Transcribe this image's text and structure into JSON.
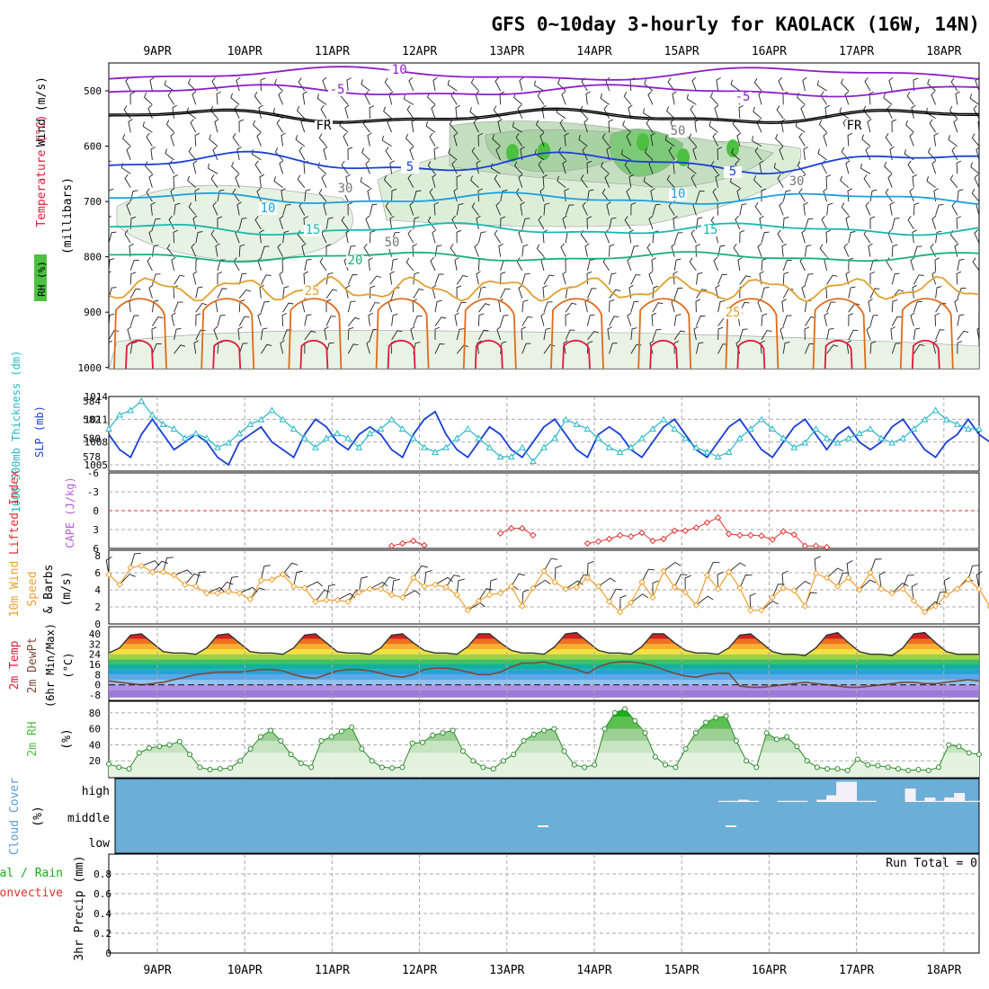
{
  "title": "GFS 0~10day 3-hourly for KAOLACK (16W, 14N)",
  "dates": [
    "9APR",
    "10APR",
    "11APR",
    "12APR",
    "13APR",
    "14APR",
    "15APR",
    "16APR",
    "17APR",
    "18APR"
  ],
  "colors": {
    "temp_purple": "#8a1fc8",
    "temp_blue": "#1a3fd8",
    "temp_lightblue": "#1aa0e0",
    "temp_teal": "#1ab8b0",
    "temp_green": "#18b07a",
    "temp_orange": "#e0a030",
    "temp_darkorange": "#e06a18",
    "temp_red": "#e01838",
    "rh_green": "#4cc040",
    "slp_blue": "#1a3fd8",
    "thickness_cyan": "#28b8c8",
    "li_red": "#e03030",
    "wind_orange": "#f0a030",
    "cloud_blue": "#6baed6"
  },
  "panels": {
    "upper_air": {
      "ylabels": {
        "rh": "RH (%)",
        "temp": "Temperature (°C)",
        "wind": "Wind (m/s)",
        "pressure": "(millibars)"
      },
      "yticks": [
        "500",
        "600",
        "700",
        "800",
        "900",
        "1000"
      ],
      "contour_labels": [
        "-10",
        "-5",
        "-5",
        "FR",
        "FR",
        "5",
        "5",
        "10",
        "10",
        "15",
        "15",
        "20",
        "25",
        "25",
        "30",
        "30",
        "50",
        "50"
      ],
      "rh_legend": "RH (%)"
    },
    "slp": {
      "ylabel_left": "1000-500mb Thickness (dm)",
      "ylabel_right": "SLP (mb)",
      "yticks_left": [
        "584",
        "582",
        "580",
        "578"
      ],
      "yticks_right": [
        "1014",
        "1011",
        "1008",
        "1005"
      ]
    },
    "li": {
      "ylabel_left": "Lifted Index",
      "ylabel_right": "CAPE (J/kg)",
      "yticks": [
        "-6",
        "-3",
        "0",
        "3",
        "6"
      ]
    },
    "wind10": {
      "ylabel": "10m Wind Speed & Barbs (m/s)",
      "ylabel_lines": [
        "10m Wind",
        "Speed",
        "& Barbs",
        "(m/s)"
      ],
      "yticks": [
        "8",
        "6",
        "4",
        "2",
        "0"
      ]
    },
    "temp2m": {
      "ylabel_lines": [
        "2m Temp",
        "2m DewPt",
        "(6hr Min/Max)",
        "(°C)"
      ],
      "yticks": [
        "40",
        "32",
        "24",
        "16",
        "8",
        "0",
        "-8"
      ]
    },
    "rh2m": {
      "ylabel_lines": [
        "2m RH",
        "(%)"
      ],
      "yticks": [
        "80",
        "60",
        "40",
        "20"
      ]
    },
    "cloud": {
      "ylabel_lines": [
        "Cloud Cover",
        "(%)"
      ],
      "levels": [
        "high",
        "middle",
        "low"
      ]
    },
    "precip": {
      "ylabel_lines": [
        "Total / Rain",
        "Convective",
        "3hr Precip (mm)"
      ],
      "yticks": [
        "0.8",
        "0.6",
        "0.4",
        "0.2",
        "0"
      ],
      "run_total": "Run Total = 0"
    }
  },
  "chart_data": [
    {
      "type": "line",
      "name": "slp",
      "title": "",
      "ylabel": "SLP (mb)",
      "ylim": [
        1004,
        1014
      ],
      "values": [
        1009,
        1007,
        1006,
        1009,
        1011,
        1009,
        1007,
        1008,
        1009,
        1008,
        1006,
        1005,
        1008,
        1009,
        1010,
        1008,
        1007,
        1006,
        1009,
        1011,
        1010,
        1008,
        1007,
        1009,
        1010,
        1009,
        1007,
        1006,
        1009,
        1011,
        1012,
        1009,
        1007,
        1006,
        1008,
        1010,
        1009,
        1007,
        1006,
        1008,
        1010,
        1011,
        1009,
        1007,
        1006,
        1009,
        1010,
        1009,
        1007,
        1006,
        1008,
        1010,
        1011,
        1009,
        1007,
        1006,
        1008,
        1010,
        1011,
        1009,
        1007,
        1006,
        1008,
        1010,
        1011,
        1009,
        1007,
        1009,
        1010,
        1008,
        1007,
        1008,
        1010,
        1011,
        1009,
        1007,
        1006,
        1008,
        1009,
        1011,
        1009,
        1008
      ]
    },
    {
      "type": "line",
      "name": "thickness",
      "title": "",
      "ylabel": "1000-500mb Thickness (dm)",
      "ylim": [
        577,
        585
      ],
      "values": [
        581,
        582.5,
        583,
        584,
        582.5,
        581.5,
        581,
        580,
        580.5,
        580,
        579,
        579.5,
        580.5,
        581.5,
        582,
        583,
        582,
        581,
        580,
        579,
        580,
        580.5,
        580,
        579,
        580.5,
        581,
        582,
        581,
        580,
        579,
        578.5,
        579,
        580,
        581,
        580,
        579,
        578,
        578,
        579,
        577.5,
        579,
        580,
        582,
        581.5,
        581,
        580,
        579,
        578.5,
        579,
        580,
        581,
        582,
        581,
        580,
        579,
        578.5,
        578,
        578.5,
        580,
        581,
        582,
        581,
        580,
        579,
        579.5,
        581,
        580,
        579.5,
        580,
        580.5,
        581,
        580,
        579.5,
        580,
        581,
        582,
        583,
        582,
        581.5,
        581,
        581
      ]
    },
    {
      "type": "line",
      "name": "lifted_index",
      "title": "",
      "ylabel": "Lifted Index",
      "ylim": [
        -6,
        6
      ],
      "values": [
        null,
        null,
        null,
        null,
        null,
        null,
        null,
        null,
        null,
        null,
        null,
        null,
        null,
        null,
        null,
        null,
        null,
        null,
        null,
        null,
        null,
        null,
        null,
        null,
        null,
        null,
        5.6,
        5.2,
        4.8,
        5.5,
        null,
        null,
        null,
        null,
        null,
        null,
        3.6,
        2.8,
        2.8,
        3.9,
        null,
        null,
        null,
        null,
        5.2,
        4.9,
        4.5,
        3.9,
        4.1,
        3.5,
        4.8,
        4.5,
        3.2,
        3.2,
        2.7,
        1.9,
        1.1,
        3.7,
        3.9,
        3.9,
        4,
        4.6,
        3.3,
        3.8,
        5.6,
        5.6,
        5.8,
        null
      ]
    },
    {
      "type": "line",
      "name": "wind_10m",
      "title": "",
      "ylabel": "(m/s)",
      "ylim": [
        0,
        8
      ],
      "values": [
        5.8,
        4.6,
        6.6,
        6.8,
        6.1,
        6.1,
        5.7,
        4.6,
        4.4,
        3.6,
        3.6,
        3.8,
        3.6,
        2.9,
        5.1,
        5.2,
        5.8,
        4.4,
        4.2,
        2.6,
        2.8,
        2.8,
        2.6,
        3.7,
        4.1,
        4.1,
        3.4,
        3.1,
        5.4,
        4.4,
        4.6,
        4.3,
        3.4,
        1.6,
        2.7,
        3.4,
        3.6,
        4.4,
        2.1,
        4.2,
        6.2,
        4.9,
        4.1,
        4.3,
        5.4,
        4.4,
        2.6,
        1.4,
        2.5,
        4.9,
        3.1,
        6.2,
        4.3,
        3.7,
        2.2,
        5.7,
        4.1,
        6.1,
        4.2,
        1.6,
        1.6,
        3.1,
        4.2,
        3.9,
        2.1,
        5.9,
        5.4,
        4.4,
        5.4,
        4,
        6,
        4.1,
        3.6,
        4.1,
        2.7,
        1.4,
        2.1,
        3.4,
        4.1,
        5.2,
        4.1,
        2
      ]
    },
    {
      "type": "area",
      "name": "temp_2m",
      "title": "",
      "ylabel": "(°C)",
      "ylim": [
        -10,
        44
      ],
      "values": [
        25,
        29,
        39,
        40,
        33,
        26,
        25,
        25,
        24,
        29,
        39,
        40,
        33,
        26,
        25,
        25,
        24,
        29,
        39,
        40,
        33,
        26,
        25,
        25,
        24,
        29,
        39,
        40,
        33,
        27,
        25,
        25,
        24,
        30,
        40,
        40,
        33,
        27,
        25,
        25,
        24,
        30,
        40,
        41,
        34,
        27,
        25,
        25,
        24,
        30,
        40,
        40,
        33,
        27,
        25,
        25,
        24,
        29,
        39,
        40,
        33,
        26,
        24,
        24,
        23,
        29,
        39,
        41,
        33,
        26,
        24,
        24,
        23,
        29,
        40,
        41,
        33,
        26,
        24,
        24,
        24
      ]
    },
    {
      "type": "line",
      "name": "dewpt_2m",
      "title": "",
      "ylabel": "(°C)",
      "ylim": [
        -10,
        44
      ],
      "values": [
        3,
        2,
        1,
        0,
        1,
        2,
        4,
        6,
        8,
        9,
        10,
        10,
        10,
        11,
        12,
        12,
        11,
        8,
        6,
        5,
        8,
        11,
        12,
        12,
        11,
        9,
        7,
        6,
        8,
        12,
        13,
        13,
        12,
        10,
        8,
        8,
        10,
        14,
        17,
        17,
        18,
        16,
        14,
        12,
        9,
        14,
        17,
        18,
        18,
        17,
        15,
        12,
        9,
        7,
        6,
        8,
        9,
        9,
        -1,
        -2,
        -2,
        -1,
        0,
        1,
        2,
        1,
        0,
        -1,
        -2,
        -2,
        -1,
        0,
        1,
        2,
        2,
        1,
        1,
        2,
        3,
        4,
        3
      ]
    },
    {
      "type": "area",
      "name": "rh_2m",
      "title": "",
      "ylabel": "(%)",
      "ylim": [
        0,
        90
      ],
      "values": [
        16,
        12,
        10,
        30,
        36,
        38,
        40,
        44,
        28,
        12,
        9,
        10,
        11,
        20,
        35,
        50,
        58,
        45,
        28,
        17,
        12,
        45,
        50,
        57,
        62,
        35,
        20,
        12,
        11,
        12,
        42,
        43,
        52,
        55,
        58,
        32,
        20,
        12,
        10,
        20,
        28,
        45,
        53,
        58,
        60,
        32,
        15,
        12,
        15,
        60,
        80,
        85,
        70,
        55,
        25,
        15,
        12,
        35,
        55,
        68,
        74,
        76,
        45,
        20,
        12,
        55,
        47,
        50,
        38,
        20,
        12,
        10,
        10,
        8,
        22,
        15,
        14,
        12,
        10,
        8,
        9,
        8,
        12,
        40,
        38,
        30,
        28
      ]
    },
    {
      "type": "bar",
      "name": "cloud_cover_high",
      "title": "",
      "ylabel": "(%)",
      "ylim": [
        0,
        100
      ],
      "values": [
        0,
        0,
        0,
        0,
        0,
        0,
        0,
        0,
        0,
        0,
        0,
        0,
        0,
        0,
        0,
        0,
        0,
        0,
        0,
        0,
        0,
        0,
        0,
        0,
        0,
        0,
        0,
        0,
        0,
        0,
        0,
        0,
        0,
        0,
        0,
        0,
        0,
        0,
        0,
        0,
        0,
        0,
        0,
        0,
        0,
        0,
        0,
        0,
        0,
        0,
        0,
        0,
        0,
        0,
        0,
        0,
        0,
        0,
        0,
        0,
        0,
        0,
        5,
        5,
        10,
        5,
        0,
        0,
        5,
        5,
        5,
        0,
        10,
        30,
        90,
        90,
        5,
        5,
        0,
        0,
        0,
        60,
        5,
        20,
        5,
        20,
        40,
        5,
        5
      ]
    },
    {
      "type": "bar",
      "name": "precip_3hr",
      "title": "",
      "ylabel": "3hr Precip (mm)",
      "ylim": [
        0,
        1
      ],
      "values": []
    }
  ]
}
